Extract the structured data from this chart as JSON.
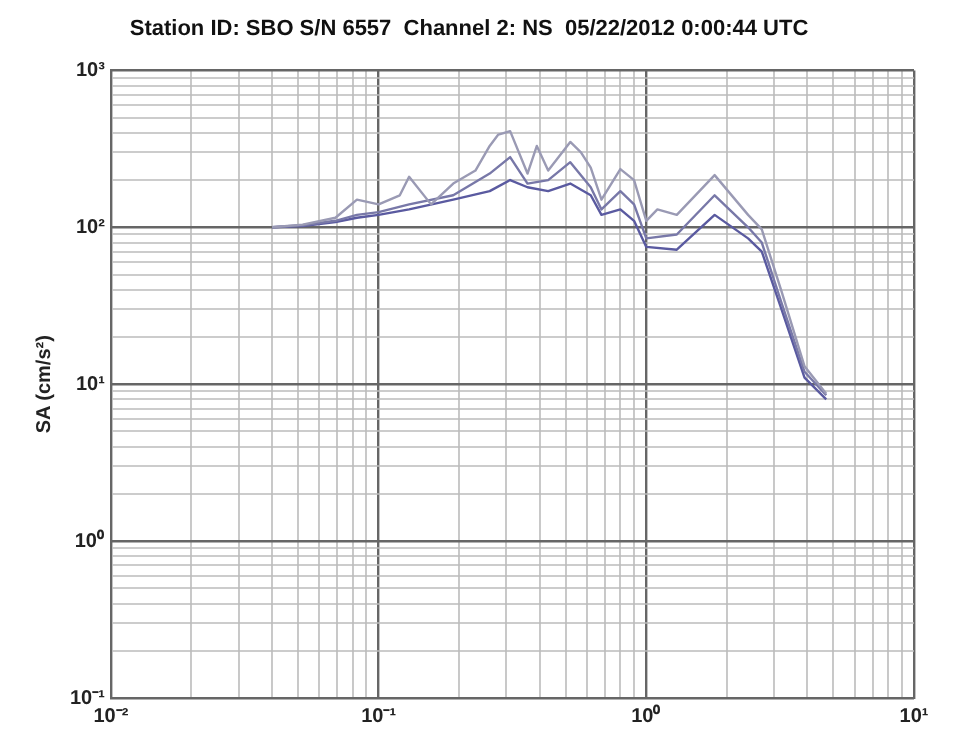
{
  "chart_data": {
    "type": "line",
    "title": "Station ID: SBO S/N 6557  Channel 2: NS  05/22/2012 0:00:44 UTC",
    "ylabel": "SA (cm/s²)",
    "log": "xy",
    "grid": true,
    "legend": false,
    "marker": "none",
    "line_style": "solid",
    "xlim": [
      0.01,
      10
    ],
    "ylim": [
      0.1,
      1000
    ],
    "xticks": [
      {
        "value": 0.01,
        "label": "10⁻²"
      },
      {
        "value": 0.02,
        "label": null
      },
      {
        "value": 0.03,
        "label": null
      },
      {
        "value": 0.04,
        "label": null
      },
      {
        "value": 0.05,
        "label": null
      },
      {
        "value": 0.06,
        "label": null
      },
      {
        "value": 0.07,
        "label": null
      },
      {
        "value": 0.08,
        "label": null
      },
      {
        "value": 0.09,
        "label": null
      },
      {
        "value": 0.1,
        "label": "10⁻¹"
      },
      {
        "value": 0.2,
        "label": null
      },
      {
        "value": 0.3,
        "label": null
      },
      {
        "value": 0.4,
        "label": null
      },
      {
        "value": 0.5,
        "label": null
      },
      {
        "value": 0.6,
        "label": null
      },
      {
        "value": 0.7,
        "label": null
      },
      {
        "value": 0.8,
        "label": null
      },
      {
        "value": 0.9,
        "label": null
      },
      {
        "value": 1,
        "label": "10⁰"
      },
      {
        "value": 2,
        "label": null
      },
      {
        "value": 3,
        "label": null
      },
      {
        "value": 4,
        "label": null
      },
      {
        "value": 5,
        "label": null
      },
      {
        "value": 6,
        "label": null
      },
      {
        "value": 7,
        "label": null
      },
      {
        "value": 8,
        "label": null
      },
      {
        "value": 9,
        "label": null
      },
      {
        "value": 10,
        "label": "10¹"
      }
    ],
    "yticks": [
      {
        "value": 0.1,
        "label": "10⁻¹"
      },
      {
        "value": 0.2,
        "label": null
      },
      {
        "value": 0.3,
        "label": null
      },
      {
        "value": 0.4,
        "label": null
      },
      {
        "value": 0.5,
        "label": null
      },
      {
        "value": 0.6,
        "label": null
      },
      {
        "value": 0.7,
        "label": null
      },
      {
        "value": 0.8,
        "label": null
      },
      {
        "value": 0.9,
        "label": null
      },
      {
        "value": 1,
        "label": "10⁰"
      },
      {
        "value": 2,
        "label": null
      },
      {
        "value": 3,
        "label": null
      },
      {
        "value": 4,
        "label": null
      },
      {
        "value": 5,
        "label": null
      },
      {
        "value": 6,
        "label": null
      },
      {
        "value": 7,
        "label": null
      },
      {
        "value": 8,
        "label": null
      },
      {
        "value": 9,
        "label": null
      },
      {
        "value": 10,
        "label": "10¹"
      },
      {
        "value": 20,
        "label": null
      },
      {
        "value": 30,
        "label": null
      },
      {
        "value": 40,
        "label": null
      },
      {
        "value": 50,
        "label": null
      },
      {
        "value": 60,
        "label": null
      },
      {
        "value": 70,
        "label": null
      },
      {
        "value": 80,
        "label": null
      },
      {
        "value": 90,
        "label": null
      },
      {
        "value": 100,
        "label": "10²"
      },
      {
        "value": 200,
        "label": null
      },
      {
        "value": 300,
        "label": null
      },
      {
        "value": 400,
        "label": null
      },
      {
        "value": 500,
        "label": null
      },
      {
        "value": 600,
        "label": null
      },
      {
        "value": 700,
        "label": null
      },
      {
        "value": 800,
        "label": null
      },
      {
        "value": 900,
        "label": null
      },
      {
        "value": 1000,
        "label": "10³"
      }
    ],
    "series": [
      {
        "color": "#9a9ab4",
        "x": [
          0.04,
          0.052,
          0.069,
          0.083,
          0.1,
          0.12,
          0.13,
          0.157,
          0.19,
          0.23,
          0.26,
          0.28,
          0.31,
          0.36,
          0.39,
          0.43,
          0.52,
          0.57,
          0.62,
          0.68,
          0.8,
          0.9,
          1.0,
          1.1,
          1.3,
          1.8,
          2.4,
          2.7,
          3.2,
          3.9,
          4.7
        ],
        "values": [
          100,
          104,
          115,
          150,
          140,
          160,
          210,
          140,
          190,
          230,
          330,
          390,
          410,
          220,
          330,
          230,
          350,
          300,
          240,
          150,
          235,
          200,
          110,
          130,
          120,
          215,
          120,
          97,
          39,
          13,
          8.7
        ]
      },
      {
        "color": "#7878a8",
        "x": [
          0.04,
          0.052,
          0.069,
          0.083,
          0.1,
          0.13,
          0.19,
          0.26,
          0.31,
          0.36,
          0.43,
          0.52,
          0.62,
          0.68,
          0.8,
          0.9,
          1.0,
          1.3,
          1.8,
          2.4,
          2.7,
          3.2,
          3.9,
          4.7
        ],
        "values": [
          100,
          103,
          110,
          120,
          125,
          140,
          160,
          220,
          280,
          190,
          200,
          260,
          180,
          130,
          170,
          140,
          85,
          90,
          160,
          100,
          80,
          33,
          12,
          8.5
        ]
      },
      {
        "color": "#5a5aa0",
        "x": [
          0.04,
          0.052,
          0.069,
          0.083,
          0.1,
          0.13,
          0.19,
          0.26,
          0.31,
          0.36,
          0.43,
          0.52,
          0.62,
          0.68,
          0.8,
          0.9,
          1.0,
          1.3,
          1.8,
          2.4,
          2.7,
          3.2,
          3.9,
          4.7
        ],
        "values": [
          100,
          102,
          108,
          115,
          120,
          130,
          150,
          170,
          200,
          180,
          170,
          190,
          160,
          120,
          130,
          110,
          75,
          72,
          120,
          85,
          70,
          30,
          11,
          8
        ]
      }
    ]
  }
}
